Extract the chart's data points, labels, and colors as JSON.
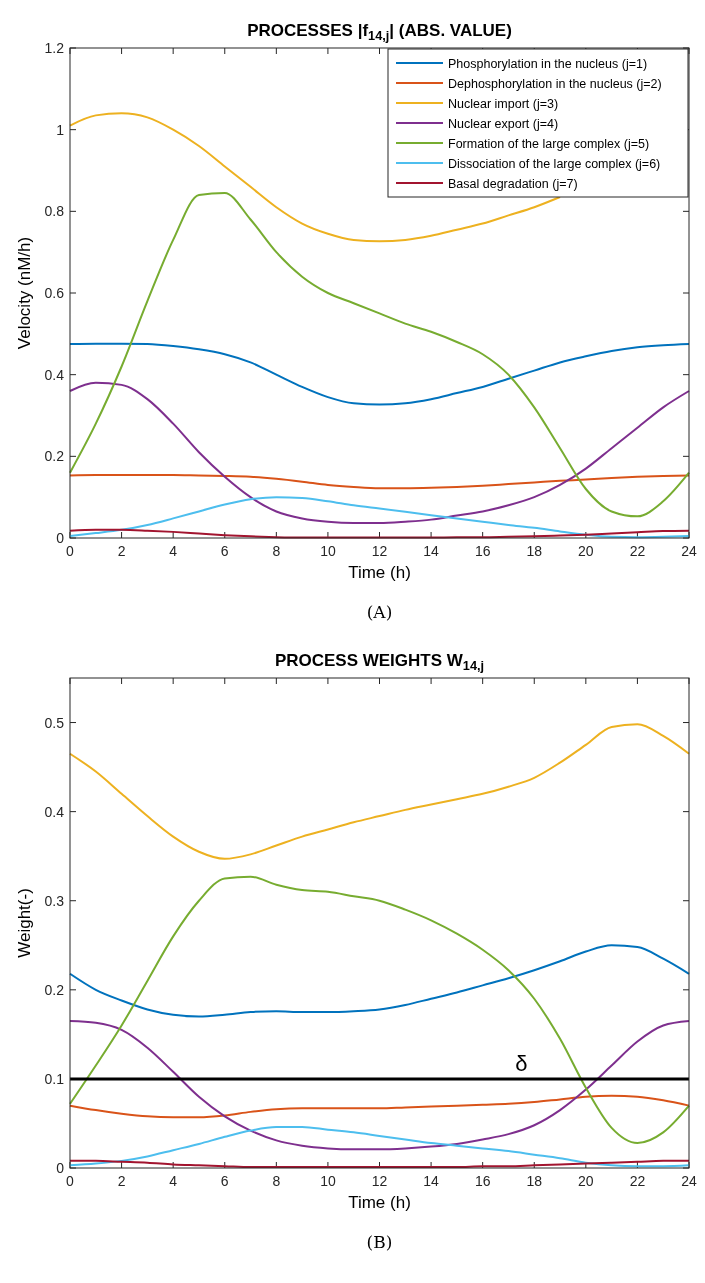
{
  "chart_data": [
    {
      "type": "line",
      "title": "PROCESSES |f$_{14,j}$| (ABS. VALUE)",
      "xlabel": "Time (h)",
      "ylabel": "Velocity (nM/h)",
      "annotations": [
        "(A)"
      ],
      "xlim": [
        0,
        24
      ],
      "xticks": [
        0,
        2,
        4,
        6,
        8,
        10,
        12,
        14,
        16,
        18,
        20,
        22,
        24
      ],
      "ylim": [
        0,
        1.2
      ],
      "yticks": [
        0,
        0.2,
        0.4,
        0.6,
        0.8,
        1,
        1.2
      ],
      "legend": "top right",
      "grid": false,
      "line_style": "solid",
      "marker": "none",
      "x": [
        0,
        1,
        2,
        3,
        4,
        5,
        6,
        7,
        8,
        9,
        10,
        11,
        12,
        13,
        14,
        15,
        16,
        17,
        18,
        19,
        20,
        21,
        22,
        23,
        24
      ],
      "series": [
        {
          "name": "Phosphorylation in the nucleus (j=1)",
          "color": "#0072bd",
          "values": [
            0.475,
            0.476,
            0.476,
            0.475,
            0.47,
            0.462,
            0.45,
            0.43,
            0.4,
            0.37,
            0.345,
            0.33,
            0.327,
            0.33,
            0.34,
            0.355,
            0.37,
            0.39,
            0.41,
            0.43,
            0.445,
            0.458,
            0.467,
            0.472,
            0.475
          ]
        },
        {
          "name": "Dephosphorylation in the nucleus (j=2)",
          "color": "#d95319",
          "values": [
            0.153,
            0.154,
            0.154,
            0.154,
            0.154,
            0.153,
            0.152,
            0.15,
            0.145,
            0.138,
            0.13,
            0.125,
            0.122,
            0.122,
            0.123,
            0.125,
            0.128,
            0.132,
            0.136,
            0.14,
            0.143,
            0.147,
            0.15,
            0.152,
            0.153
          ]
        },
        {
          "name": "Nuclear import (j=3)",
          "color": "#edb120",
          "values": [
            1.01,
            1.035,
            1.04,
            1.03,
            1.0,
            0.96,
            0.91,
            0.86,
            0.81,
            0.77,
            0.745,
            0.73,
            0.727,
            0.73,
            0.74,
            0.755,
            0.77,
            0.79,
            0.81,
            0.835,
            null,
            null,
            null,
            null,
            null
          ]
        },
        {
          "name": "Nuclear export (j=4)",
          "color": "#7e2f8e",
          "values": [
            0.36,
            0.38,
            0.375,
            0.34,
            0.28,
            0.21,
            0.15,
            0.1,
            0.065,
            0.048,
            0.04,
            0.037,
            0.037,
            0.04,
            0.045,
            0.055,
            0.065,
            0.08,
            0.1,
            0.13,
            0.17,
            0.22,
            0.27,
            0.32,
            0.36
          ]
        },
        {
          "name": "Formation of the large complex (j=5)",
          "color": "#77ac30",
          "values": [
            0.16,
            0.28,
            0.42,
            0.58,
            0.73,
            0.84,
            0.845,
            0.78,
            0.7,
            0.64,
            0.6,
            0.575,
            0.55,
            0.525,
            0.505,
            0.48,
            0.45,
            0.4,
            0.32,
            0.22,
            0.12,
            0.065,
            0.053,
            0.09,
            0.16
          ]
        },
        {
          "name": "Dissociation of the large complex (j=6)",
          "color": "#4dbeee",
          "values": [
            0.005,
            0.012,
            0.02,
            0.032,
            0.048,
            0.065,
            0.082,
            0.095,
            0.1,
            0.098,
            0.09,
            0.08,
            0.072,
            0.064,
            0.056,
            0.048,
            0.04,
            0.032,
            0.025,
            0.016,
            0.008,
            0.003,
            0.002,
            0.003,
            0.005
          ]
        },
        {
          "name": "Basal degradation (j=7)",
          "color": "#a2142f",
          "values": [
            0.018,
            0.02,
            0.02,
            0.018,
            0.015,
            0.011,
            0.007,
            0.004,
            0.002,
            0.001,
            0.001,
            0.001,
            0.001,
            0.001,
            0.001,
            0.002,
            0.002,
            0.003,
            0.004,
            0.006,
            0.008,
            0.011,
            0.014,
            0.017,
            0.018
          ]
        }
      ]
    },
    {
      "type": "line",
      "title": "PROCESS WEIGHTS W$_{14,j}$",
      "xlabel": "Time (h)",
      "ylabel": "Weight(-)",
      "annotations": [
        "(B)"
      ],
      "xlim": [
        0,
        24
      ],
      "xticks": [
        0,
        2,
        4,
        6,
        8,
        10,
        12,
        14,
        16,
        18,
        20,
        22,
        24
      ],
      "ylim": [
        0,
        0.55
      ],
      "yticks": [
        0,
        0.1,
        0.2,
        0.3,
        0.4,
        0.5
      ],
      "legend": false,
      "grid": false,
      "line_style": "solid",
      "marker": "none",
      "ref_lines": [
        {
          "axis": "y",
          "value": 0.1,
          "label": "δ",
          "color": "#000000"
        }
      ],
      "x": [
        0,
        1,
        2,
        3,
        4,
        5,
        6,
        7,
        8,
        9,
        10,
        11,
        12,
        13,
        14,
        15,
        16,
        17,
        18,
        19,
        20,
        21,
        22,
        23,
        24
      ],
      "series": [
        {
          "color": "#0072bd",
          "values": [
            0.218,
            0.2,
            0.188,
            0.178,
            0.172,
            0.17,
            0.172,
            0.175,
            0.176,
            0.175,
            0.175,
            0.176,
            0.178,
            0.183,
            0.19,
            0.197,
            0.205,
            0.213,
            0.222,
            0.232,
            0.243,
            0.25,
            0.248,
            0.235,
            0.218
          ]
        },
        {
          "color": "#d95319",
          "values": [
            0.07,
            0.065,
            0.061,
            0.058,
            0.057,
            0.057,
            0.059,
            0.063,
            0.066,
            0.067,
            0.067,
            0.067,
            0.067,
            0.068,
            0.069,
            0.07,
            0.071,
            0.072,
            0.074,
            0.077,
            0.08,
            0.081,
            0.08,
            0.076,
            0.07
          ]
        },
        {
          "color": "#edb120",
          "values": [
            0.465,
            0.445,
            0.42,
            0.395,
            0.372,
            0.355,
            0.347,
            0.352,
            0.362,
            0.372,
            0.38,
            0.388,
            0.395,
            0.402,
            0.408,
            0.414,
            0.42,
            0.428,
            0.438,
            0.455,
            0.475,
            0.495,
            0.498,
            0.485,
            0.465
          ]
        },
        {
          "color": "#7e2f8e",
          "values": [
            0.165,
            0.163,
            0.155,
            0.135,
            0.108,
            0.08,
            0.058,
            0.042,
            0.031,
            0.025,
            0.022,
            0.021,
            0.021,
            0.022,
            0.024,
            0.027,
            0.032,
            0.038,
            0.048,
            0.065,
            0.088,
            0.115,
            0.142,
            0.16,
            0.165
          ]
        },
        {
          "color": "#77ac30",
          "values": [
            0.072,
            0.115,
            0.16,
            0.21,
            0.26,
            0.3,
            0.325,
            0.327,
            0.318,
            0.312,
            0.31,
            0.305,
            0.3,
            0.29,
            0.278,
            0.263,
            0.245,
            0.222,
            0.19,
            0.145,
            0.09,
            0.045,
            0.028,
            0.04,
            0.07
          ]
        },
        {
          "color": "#4dbeee",
          "values": [
            0.003,
            0.005,
            0.008,
            0.013,
            0.02,
            0.027,
            0.035,
            0.042,
            0.046,
            0.046,
            0.043,
            0.04,
            0.036,
            0.032,
            0.028,
            0.025,
            0.022,
            0.019,
            0.015,
            0.011,
            0.006,
            0.003,
            0.002,
            0.002,
            0.003
          ]
        },
        {
          "color": "#a2142f",
          "values": [
            0.008,
            0.008,
            0.007,
            0.006,
            0.004,
            0.003,
            0.002,
            0.001,
            0.001,
            0.001,
            0.001,
            0.001,
            0.001,
            0.001,
            0.001,
            0.001,
            0.002,
            0.002,
            0.003,
            0.004,
            0.005,
            0.006,
            0.007,
            0.008,
            0.008
          ]
        }
      ]
    }
  ]
}
